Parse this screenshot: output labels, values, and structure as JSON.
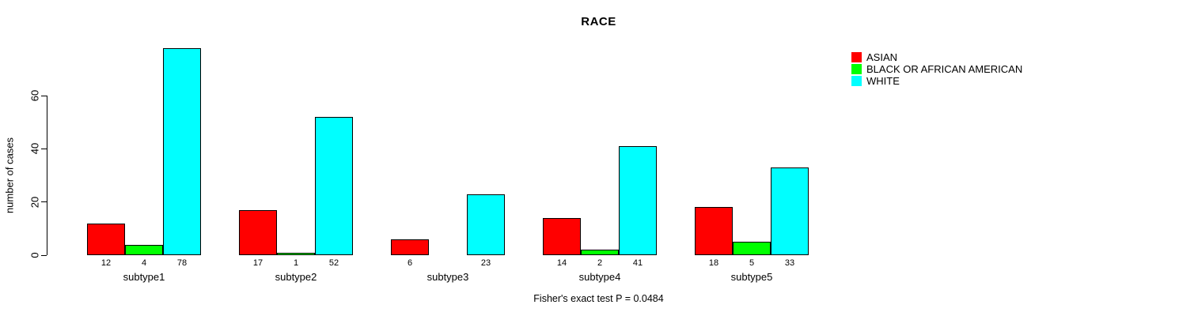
{
  "chart_data": {
    "type": "bar",
    "title": "RACE",
    "ylabel": "number of cases",
    "xlabel": "",
    "categories": [
      "subtype1",
      "subtype2",
      "subtype3",
      "subtype4",
      "subtype5"
    ],
    "series": [
      {
        "name": "ASIAN",
        "color": "#ff0000",
        "values": [
          12,
          17,
          6,
          14,
          18
        ],
        "value_labels": [
          "12",
          "17",
          "6",
          "14",
          "18"
        ]
      },
      {
        "name": "BLACK OR AFRICAN AMERICAN",
        "color": "#00ff00",
        "values": [
          4,
          1,
          0,
          2,
          5
        ],
        "value_labels": [
          "4",
          "1",
          "",
          "2",
          "5"
        ]
      },
      {
        "name": "WHITE",
        "color": "#00ffff",
        "values": [
          78,
          52,
          23,
          41,
          33
        ],
        "value_labels": [
          "78",
          "52",
          "23",
          "41",
          "33"
        ]
      }
    ],
    "yticks": [
      0,
      20,
      40,
      60
    ],
    "ylim": [
      0,
      78
    ],
    "grid": false,
    "legend_position": "top-right",
    "bar_border_color": "#000000",
    "background_color": "#ffffff",
    "footer_note": "Fisher's exact test P = 0.0484"
  }
}
